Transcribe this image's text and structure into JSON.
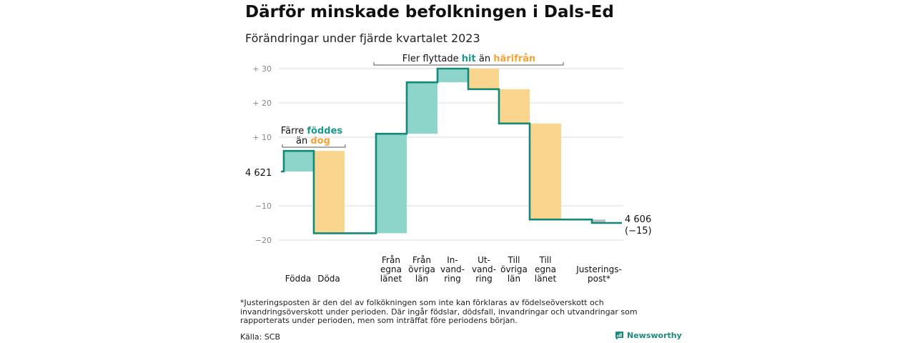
{
  "title": "Därför minskade befolkningen i Dals-Ed",
  "subtitle": "Förändringar under fjärde kvartalet 2023",
  "footnote": "*Justeringsposten är den del av folkökningen som inte kan förklaras av födelseöverskott och invandringsöverskott under perioden. Där ingår födslar, dödsfall, invandringar och utvandringar som rapporterats under perioden, men som inträffat före periodens början.",
  "source": "Källa: SCB",
  "brand": {
    "name": "Newsworthy",
    "icon": "newsworthy-logo-icon"
  },
  "colors": {
    "teal": "#8dd5cb",
    "orange": "#fad58e",
    "line": "#138a79",
    "teal_text": "#1a9a8a",
    "orange_text": "#f2a534",
    "grid": "#d9d9d9",
    "adjust": "#bdbdbd"
  },
  "chart_data": {
    "type": "waterfall",
    "start": {
      "label": "4 621",
      "value": 4621
    },
    "end": {
      "label": "4 606",
      "change_label": "(−15)",
      "value": 4606
    },
    "ylim": [
      -20,
      30
    ],
    "yticks": [
      {
        "value": 30,
        "label": "+ 30"
      },
      {
        "value": 20,
        "label": "+ 20"
      },
      {
        "value": 10,
        "label": "+ 10"
      },
      {
        "value": -10,
        "label": "−10"
      },
      {
        "value": -20,
        "label": "−20"
      }
    ],
    "steps": [
      {
        "key": "fodda",
        "label_lines": [
          "Födda"
        ],
        "value": 6,
        "kind": "in"
      },
      {
        "key": "doda",
        "label_lines": [
          "Döda"
        ],
        "value": -24,
        "kind": "out"
      },
      {
        "key": "fran-egna-lanet",
        "label_lines": [
          "Från",
          "egna",
          "länet"
        ],
        "value": 29,
        "kind": "in"
      },
      {
        "key": "fran-ovriga-lan",
        "label_lines": [
          "Från",
          "övriga",
          "län"
        ],
        "value": 15,
        "kind": "in"
      },
      {
        "key": "invandring",
        "label_lines": [
          "In-",
          "vand-",
          "ring"
        ],
        "value": 4,
        "kind": "in"
      },
      {
        "key": "utvandring",
        "label_lines": [
          "Ut-",
          "vand-",
          "ring"
        ],
        "value": -6,
        "kind": "out"
      },
      {
        "key": "till-ovriga-lan",
        "label_lines": [
          "Till",
          "övriga",
          "län"
        ],
        "value": -10,
        "kind": "out"
      },
      {
        "key": "till-egna-lanet",
        "label_lines": [
          "Till",
          "egna",
          "länet"
        ],
        "value": -28,
        "kind": "out"
      },
      {
        "key": "justeringspost",
        "label_lines": [
          "Justerings-",
          "post*"
        ],
        "value": -1,
        "kind": "adjust"
      }
    ],
    "annotations": [
      {
        "key": "births",
        "lines": [
          [
            {
              "text": "Färre ",
              "style": "plain"
            },
            {
              "text": "föddes",
              "style": "teal"
            }
          ],
          [
            {
              "text": "än ",
              "style": "plain"
            },
            {
              "text": "dog",
              "style": "orange"
            }
          ]
        ]
      },
      {
        "key": "migration",
        "lines": [
          [
            {
              "text": "Fler flyttade ",
              "style": "plain"
            },
            {
              "text": "hit",
              "style": "teal"
            },
            {
              "text": " än ",
              "style": "plain"
            },
            {
              "text": "härifrån",
              "style": "orange"
            }
          ]
        ]
      }
    ]
  }
}
